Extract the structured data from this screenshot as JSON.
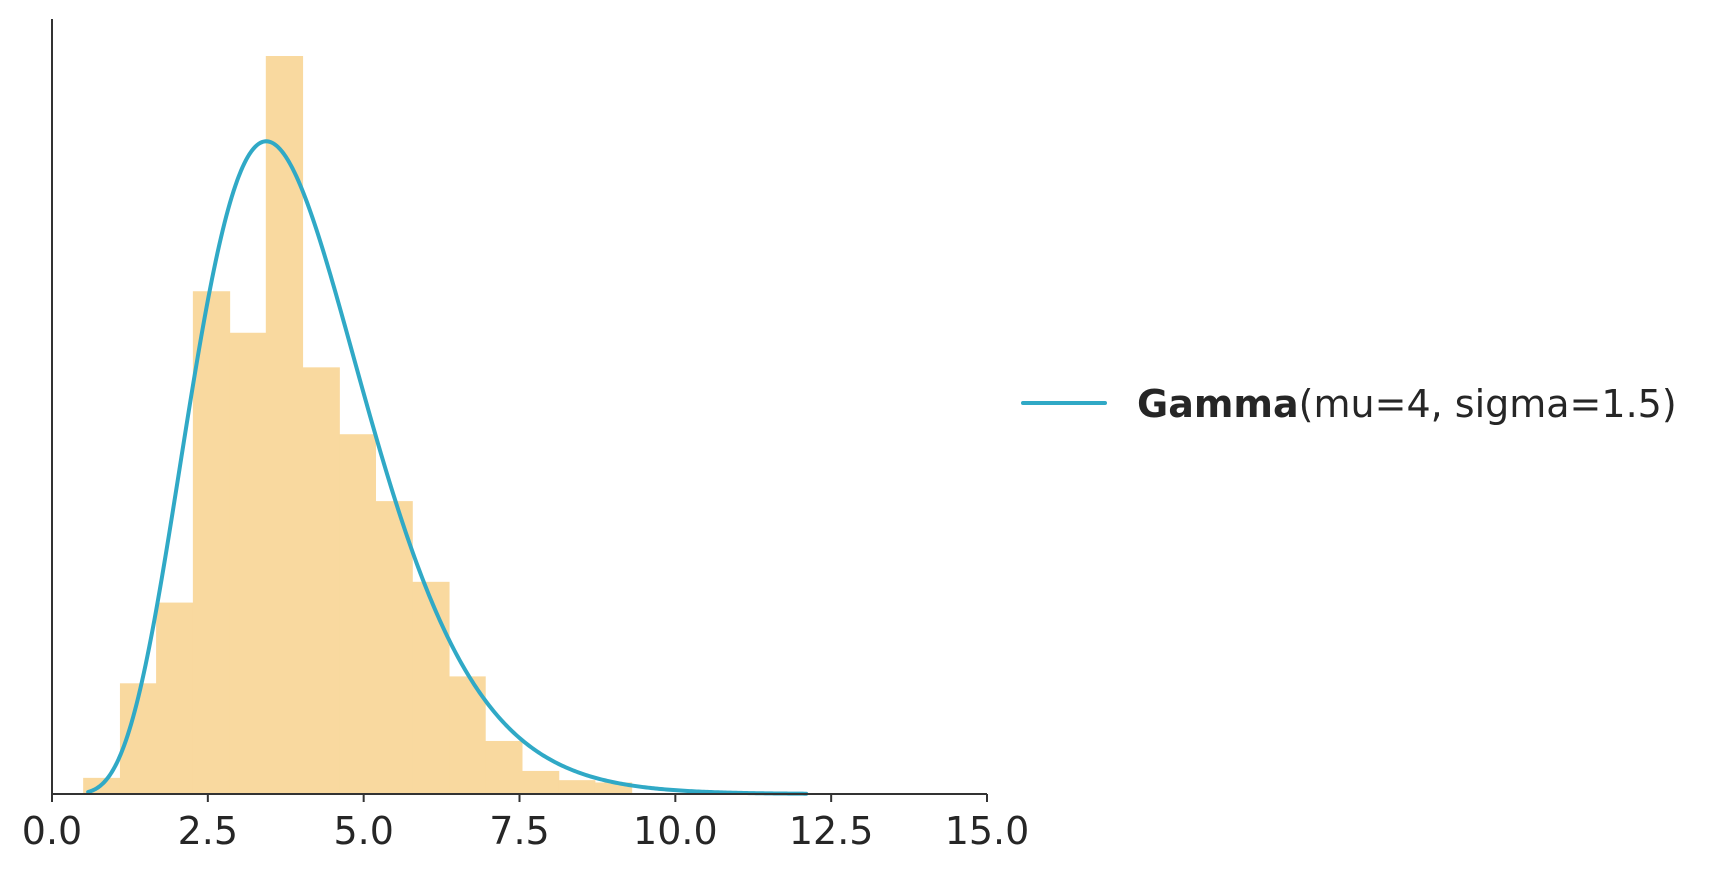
{
  "chart_data": {
    "type": "bar",
    "title": "",
    "xlabel": "",
    "ylabel": "",
    "xlim": [
      0,
      15
    ],
    "ylim": [
      0,
      0.32
    ],
    "xticks": [
      "0.0",
      "2.5",
      "5.0",
      "7.5",
      "10.0",
      "12.5",
      "15.0"
    ],
    "yticks_visible": false,
    "grid": false,
    "legend_position": "right",
    "histogram": {
      "color": "#f9d99f",
      "bin_edges": [
        0.5,
        1.09,
        1.67,
        2.26,
        2.85,
        3.43,
        4.02,
        4.61,
        5.19,
        5.78,
        6.37,
        6.95,
        7.54,
        8.13,
        8.71,
        9.3
      ],
      "density": [
        0.007,
        0.048,
        0.083,
        0.218,
        0.2,
        0.32,
        0.185,
        0.156,
        0.127,
        0.092,
        0.051,
        0.023,
        0.01,
        0.006,
        0.005
      ]
    },
    "series": [
      {
        "name_bold": "Gamma",
        "name_rest": "(mu=4, sigma=1.5)",
        "distribution": "gamma",
        "mu": 4,
        "sigma": 1.5,
        "x_range": [
          0.58,
          12.1
        ],
        "color": "#30a9c6"
      }
    ]
  }
}
